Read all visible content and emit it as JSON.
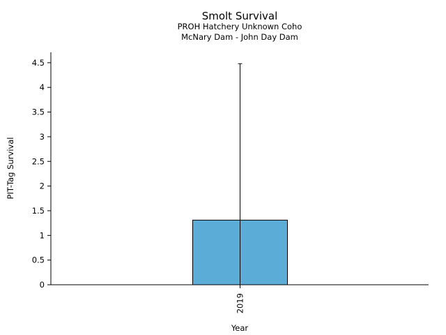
{
  "chart_data": {
    "type": "bar",
    "title": "Smolt Survival",
    "subtitle_lines": [
      "PROH Hatchery Unknown Coho",
      "McNary Dam - John Day Dam"
    ],
    "xlabel": "Year",
    "ylabel": "PIT-Tag Survival",
    "categories": [
      "2019"
    ],
    "values": [
      1.31
    ],
    "error_upper": [
      4.48
    ],
    "error_lower": [
      0
    ],
    "ylim": [
      0,
      4.7
    ],
    "yticks": [
      0,
      0.5,
      1,
      1.5,
      2,
      2.5,
      3,
      3.5,
      4,
      4.5
    ],
    "ytick_labels": [
      "0",
      "0.5",
      "1",
      "1.5",
      "2",
      "2.5",
      "3",
      "3.5",
      "4",
      "4.5"
    ],
    "grid": false,
    "colors": {
      "bar": "#5bacd7",
      "edge": "#000000",
      "axis": "#000000"
    }
  }
}
